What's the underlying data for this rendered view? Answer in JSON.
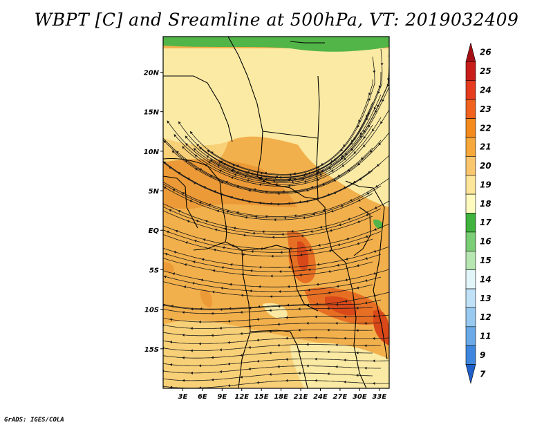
{
  "title": "WBPT [C] and Sreamline at 500hPa, VT: 2019032409",
  "credit": "GrADS: IGES/COLA",
  "map": {
    "lat_labels": [
      "20N",
      "15N",
      "10N",
      "5N",
      "EQ",
      "5S",
      "10S",
      "15S"
    ],
    "lat_values": [
      20,
      15,
      10,
      5,
      0,
      -5,
      -10,
      -15
    ],
    "lon_labels": [
      "3E",
      "6E",
      "9E",
      "12E",
      "15E",
      "18E",
      "21E",
      "24E",
      "27E",
      "30E",
      "33E"
    ],
    "lon_values": [
      3,
      6,
      9,
      12,
      15,
      18,
      21,
      24,
      27,
      30,
      33
    ],
    "lon_range": [
      0,
      34.5
    ],
    "lat_range": [
      -20,
      24.5
    ],
    "contour_colors": {
      "lt19": "#fbeaa3",
      "19_20": "#f8d077",
      "20_21": "#f2b04c",
      "21_22": "#ec9a37",
      "22_23": "#e66f24",
      "23_24": "#d94818",
      "18_green": "#52b548"
    }
  },
  "colorbar": {
    "levels": [
      "26",
      "25",
      "24",
      "23",
      "22",
      "21",
      "20",
      "19",
      "18",
      "17",
      "16",
      "15",
      "14",
      "13",
      "12",
      "11",
      "9",
      "7"
    ],
    "colors": [
      "#a50e13",
      "#c81d19",
      "#e63b1f",
      "#f0621e",
      "#f48a1c",
      "#f6a83a",
      "#fac66e",
      "#fde59a",
      "#fffabe",
      "#3fb33e",
      "#7ace75",
      "#b6e6b1",
      "#e2f5f9",
      "#c0e2f8",
      "#97c9f1",
      "#6aaae9",
      "#3e86de",
      "#1f5fc9"
    ]
  }
}
